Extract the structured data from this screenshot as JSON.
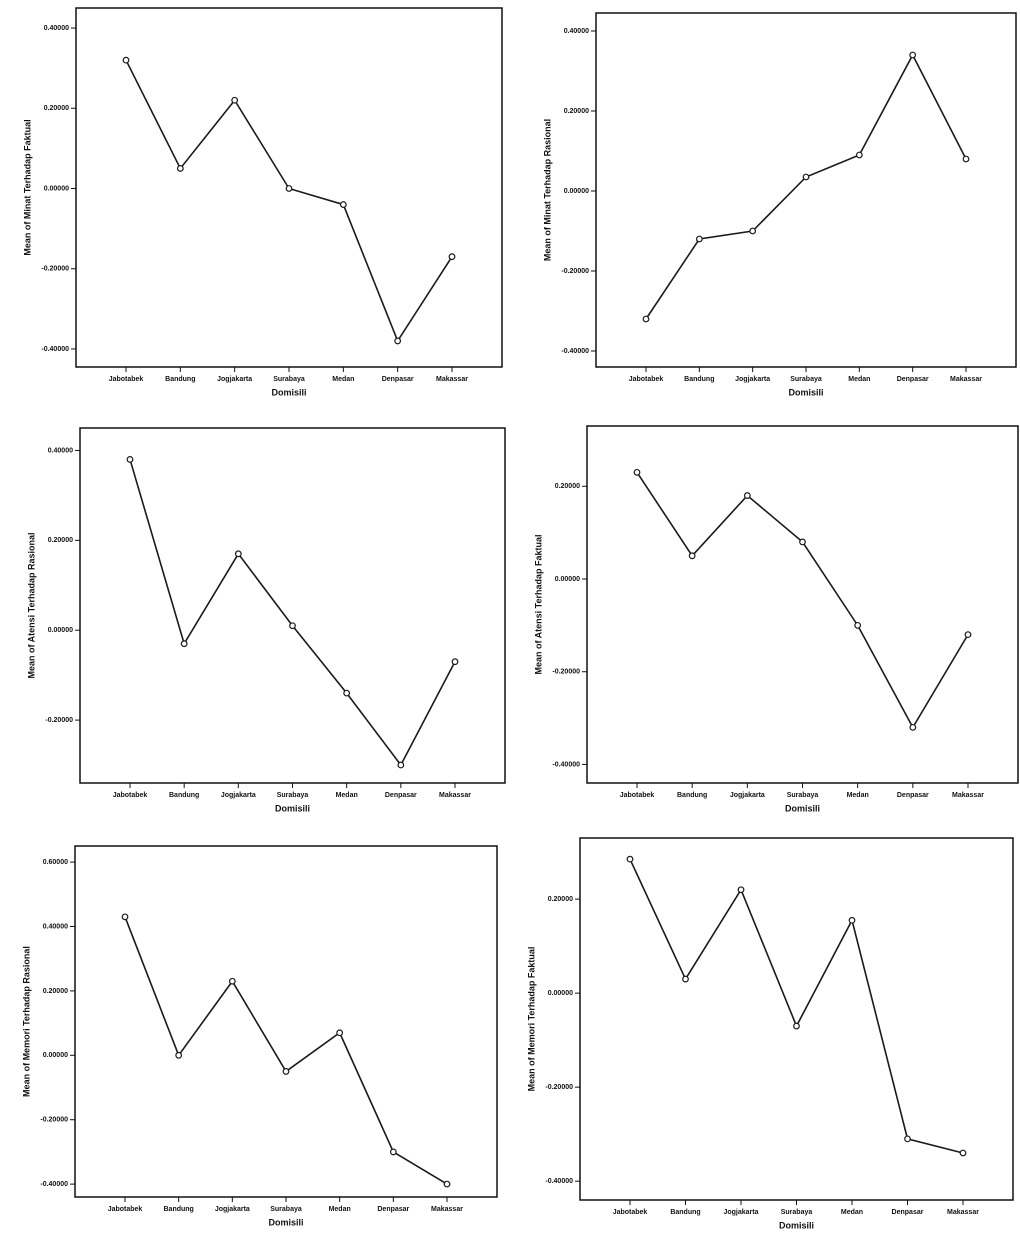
{
  "chart_data": [
    {
      "type": "line",
      "y_label": "Mean of Minat Terhadap Faktual",
      "x_label": "Domisili",
      "categories": [
        "Jabotabek",
        "Bandung",
        "Jogjakarta",
        "Surabaya",
        "Medan",
        "Denpasar",
        "Makassar"
      ],
      "values": [
        0.32,
        0.05,
        0.22,
        0.0,
        -0.04,
        -0.38,
        -0.17
      ],
      "color": "#1a1a1a",
      "ylim": [
        -0.445,
        0.45
      ],
      "yticks": [
        {
          "value": -0.4,
          "label": "-0.40000"
        },
        {
          "value": -0.2,
          "label": "-0.20000"
        },
        {
          "value": 0,
          "label": "0.00000"
        },
        {
          "value": 0.2,
          "label": "0.20000"
        },
        {
          "value": 0.4,
          "label": "0.40000"
        }
      ]
    },
    {
      "type": "line",
      "y_label": "Mean of Minat Terhadap Rasional",
      "x_label": "Domisili",
      "categories": [
        "Jabotabek",
        "Bandung",
        "Jogjakarta",
        "Surabaya",
        "Medan",
        "Denpasar",
        "Makassar"
      ],
      "values": [
        -0.32,
        -0.12,
        -0.1,
        0.035,
        0.09,
        0.34,
        0.08
      ],
      "color": "#1a1a1a",
      "ylim": [
        -0.44,
        0.445
      ],
      "yticks": [
        {
          "value": -0.4,
          "label": "-0.40000"
        },
        {
          "value": -0.2,
          "label": "-0.20000"
        },
        {
          "value": 0,
          "label": "0.00000"
        },
        {
          "value": 0.2,
          "label": "0.20000"
        },
        {
          "value": 0.4,
          "label": "0.40000"
        }
      ]
    },
    {
      "type": "line",
      "y_label": "Mean of Atensi Terhadap Rasional",
      "x_label": "Domisili",
      "categories": [
        "Jabotabek",
        "Bandung",
        "Jogjakarta",
        "Surabaya",
        "Medan",
        "Denpasar",
        "Makassar"
      ],
      "values": [
        0.38,
        -0.03,
        0.17,
        0.01,
        -0.14,
        -0.3,
        -0.07
      ],
      "color": "#1a1a1a",
      "ylim": [
        -0.34,
        0.45
      ],
      "yticks": [
        {
          "value": -0.2,
          "label": "-0.20000"
        },
        {
          "value": 0,
          "label": "0.00000"
        },
        {
          "value": 0.2,
          "label": "0.20000"
        },
        {
          "value": 0.4,
          "label": "0.40000"
        }
      ]
    },
    {
      "type": "line",
      "y_label": "Mean of Atensi Terhadap Faktual",
      "x_label": "Domisili",
      "categories": [
        "Jabotabek",
        "Bandung",
        "Jogjakarta",
        "Surabaya",
        "Medan",
        "Denpasar",
        "Makassar"
      ],
      "values": [
        0.23,
        0.05,
        0.18,
        0.08,
        -0.1,
        -0.32,
        -0.12
      ],
      "color": "#1a1a1a",
      "ylim": [
        -0.44,
        0.33
      ],
      "yticks": [
        {
          "value": -0.4,
          "label": "-0.40000"
        },
        {
          "value": -0.2,
          "label": "-0.20000"
        },
        {
          "value": 0,
          "label": "0.00000"
        },
        {
          "value": 0.2,
          "label": "0.20000"
        }
      ]
    },
    {
      "type": "line",
      "y_label": "Mean of Memori Terhadap Rasional",
      "x_label": "Domisili",
      "categories": [
        "Jabotabek",
        "Bandung",
        "Jogjakarta",
        "Surabaya",
        "Medan",
        "Denpasar",
        "Makassar"
      ],
      "values": [
        0.43,
        0.0,
        0.23,
        -0.05,
        0.07,
        -0.3,
        -0.4
      ],
      "color": "#1a1a1a",
      "ylim": [
        -0.44,
        0.65
      ],
      "yticks": [
        {
          "value": -0.4,
          "label": "-0.40000"
        },
        {
          "value": -0.2,
          "label": "-0.20000"
        },
        {
          "value": 0,
          "label": "0.00000"
        },
        {
          "value": 0.2,
          "label": "0.20000"
        },
        {
          "value": 0.4,
          "label": "0.40000"
        },
        {
          "value": 0.6,
          "label": "0.60000"
        }
      ]
    },
    {
      "type": "line",
      "y_label": "Mean of Memori Terhadap Faktual",
      "x_label": "Domisili",
      "categories": [
        "Jabotabek",
        "Bandung",
        "Jogjakarta",
        "Surabaya",
        "Medan",
        "Denpasar",
        "Makassar"
      ],
      "values": [
        0.285,
        0.03,
        0.22,
        -0.07,
        0.155,
        -0.31,
        -0.34
      ],
      "color": "#1a1a1a",
      "ylim": [
        -0.44,
        0.33
      ],
      "yticks": [
        {
          "value": -0.4,
          "label": "-0.40000"
        },
        {
          "value": -0.2,
          "label": "-0.20000"
        },
        {
          "value": 0,
          "label": "0.00000"
        },
        {
          "value": 0.2,
          "label": "0.20000"
        }
      ]
    }
  ]
}
